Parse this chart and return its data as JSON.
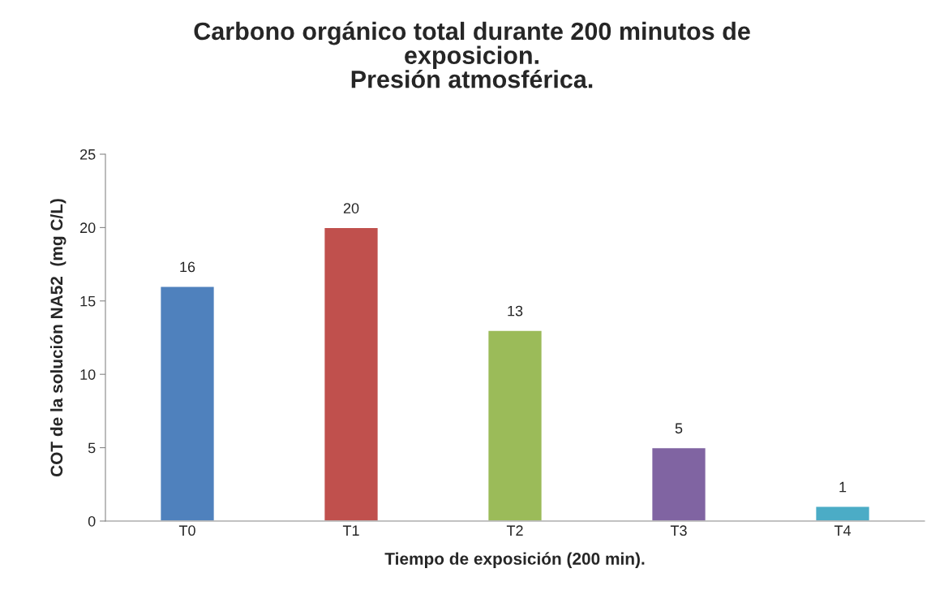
{
  "chart_data": {
    "type": "bar",
    "title": "Carbono orgánico total durante 200 minutos de\nexposicion.\nPresión atmosférica.",
    "xlabel": "Tiempo de exposición (200 min).",
    "ylabel": "COT de la solución NA52  (mg C/L)",
    "categories": [
      "T0",
      "T1",
      "T2",
      "T3",
      "T4"
    ],
    "values": [
      16,
      20,
      13,
      5,
      1
    ],
    "colors": [
      "#4f81bd",
      "#c0504d",
      "#9bbb59",
      "#8064a2",
      "#4bacc6"
    ],
    "ylim": [
      0,
      25
    ],
    "yticks": [
      0,
      5,
      10,
      15,
      20,
      25
    ],
    "data_labels": true,
    "grid": false,
    "legend": false
  }
}
